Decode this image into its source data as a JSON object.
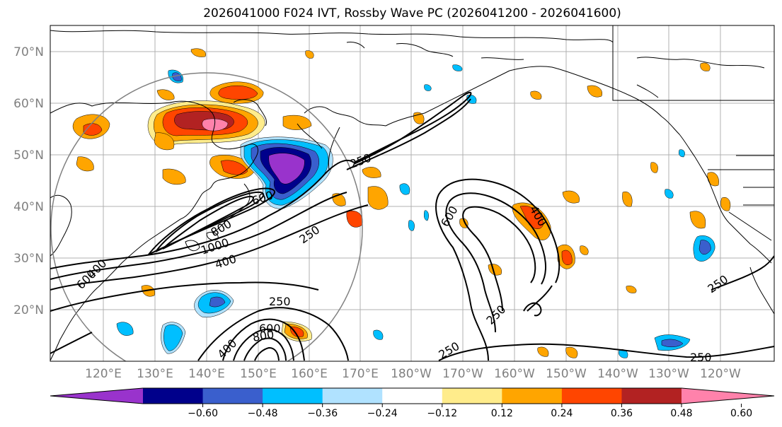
{
  "title": "2026041000 F024 IVT, Rossby Wave PC (2026041200 - 2026041600)",
  "lat_labels": [
    "70°N",
    "60°N",
    "50°N",
    "40°N",
    "30°N",
    "20°N"
  ],
  "lon_labels": [
    "120°E",
    "130°E",
    "140°E",
    "150°E",
    "160°E",
    "170°E",
    "180°W",
    "170°W",
    "160°W",
    "150°W",
    "140°W",
    "130°W",
    "120°W"
  ],
  "contour_labels": [
    "250",
    "600",
    "250",
    "800",
    "1000",
    "400",
    "400",
    "600",
    "250",
    "600",
    "800",
    "400",
    "250",
    "250",
    "600",
    "400",
    "250",
    "250"
  ],
  "colorbar": {
    "ticks": [
      "−0.60",
      "−0.48",
      "−0.36",
      "−0.24",
      "−0.12",
      "0.12",
      "0.24",
      "0.36",
      "0.48",
      "0.60"
    ],
    "colors": [
      "#9933cc",
      "#00008b",
      "#3a5fcd",
      "#00bfff",
      "#b0e2ff",
      "#ffffff",
      "#ffec8b",
      "#ffa500",
      "#ff4500",
      "#b22222",
      "#ff82ab"
    ]
  },
  "colors": {
    "circle": "#808080",
    "grid": "#b0b0b0",
    "axis_label": "#808080"
  }
}
